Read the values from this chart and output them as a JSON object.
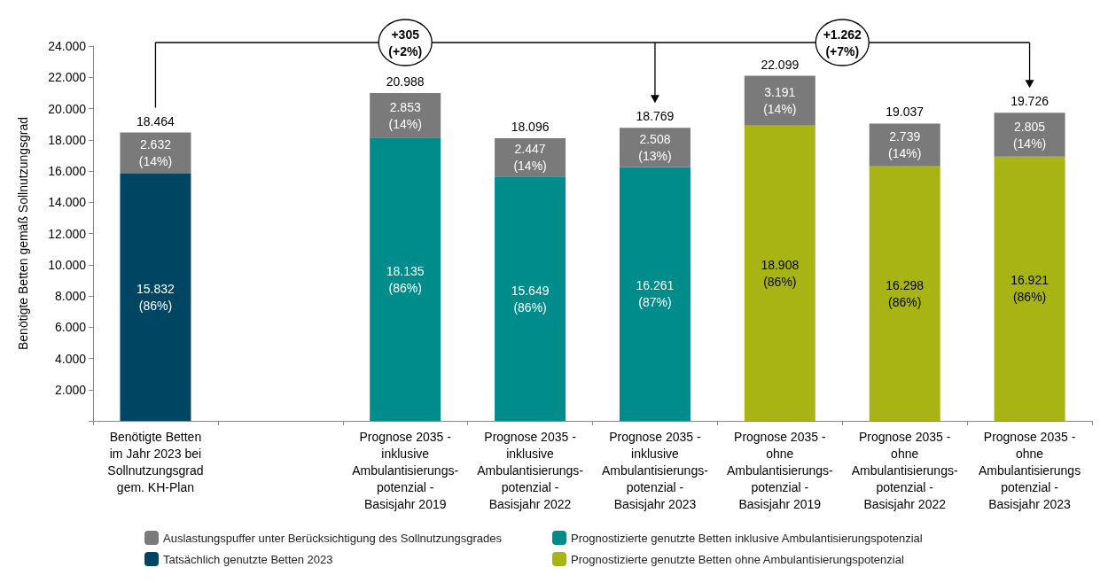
{
  "chart_data": {
    "type": "bar",
    "stacked": true,
    "ylabel": "Benötigte Betten gemäß Sollnutzungsgrad",
    "categories": [
      "Benötigte Betten\nim Jahr 2023 bei\nSollnutzungsgrad\ngem. KH-Plan",
      null,
      "Prognose 2035 -\ninklusive\nAmbulantisierungs-\npotenzial -\nBasisjahr 2019",
      "Prognose 2035 -\ninklusive\nAmbulantisierungs-\npotenzial -\nBasisjahr 2022",
      "Prognose 2035 -\ninklusive\nAmbulantisierungs-\npotenzial -\nBasisjahr 2023",
      "Prognose 2035 -\nohne\nAmbulantisierungs-\npotenzial -\nBasisjahr 2019",
      "Prognose 2035 -\nohne\nAmbulantisierungs-\npotenzial -\nBasisjahr 2022",
      "Prognose 2035 -\nohne\nAmbulantisierungs\npotenzial -\nBasisjahr 2023"
    ],
    "series": [
      {
        "name": "Tatsächlich genutzte Betten 2023",
        "color": "#004662",
        "values": [
          15832,
          null,
          null,
          null,
          null,
          null,
          null,
          null
        ],
        "value_labels": [
          "15.832\n(86%)",
          null,
          null,
          null,
          null,
          null,
          null,
          null
        ]
      },
      {
        "name": "Prognostizierte genutzte Betten inklusive Ambulantisierungspotenzial",
        "color": "#008c8a",
        "values": [
          null,
          null,
          18135,
          15649,
          16261,
          null,
          null,
          null
        ],
        "value_labels": [
          null,
          null,
          "18.135\n(86%)",
          "15.649\n(86%)",
          "16.261\n(87%)",
          null,
          null,
          null
        ]
      },
      {
        "name": "Prognostizierte genutzte Betten ohne Ambulantisierungspotenzial",
        "color": "#a8b414",
        "values": [
          null,
          null,
          null,
          null,
          null,
          18908,
          16298,
          16921
        ],
        "value_labels": [
          null,
          null,
          null,
          null,
          null,
          "18.908\n(86%)",
          "16.298\n(86%)",
          "16.921\n(86%)"
        ]
      },
      {
        "name": "Auslastungspuffer unter Berücksichtigung des Sollnutzungsgrades",
        "color": "#7a7a7a",
        "values": [
          2632,
          null,
          2853,
          2447,
          2508,
          3191,
          2739,
          2805
        ],
        "value_labels": [
          "2.632\n(14%)",
          null,
          "2.853\n(14%)",
          "2.447\n(14%)",
          "2.508\n(13%)",
          "3.191\n(14%)",
          "2.739\n(14%)",
          "2.805\n(14%)"
        ]
      }
    ],
    "totals": [
      "18.464",
      null,
      "20.988",
      "18.096",
      "18.769",
      "22.099",
      "19.037",
      "19.726"
    ],
    "ylim": [
      0,
      24000
    ],
    "yticks": [
      {
        "value": 0,
        "label": null
      },
      {
        "value": 2000,
        "label": "2.000"
      },
      {
        "value": 4000,
        "label": "4.000"
      },
      {
        "value": 6000,
        "label": "6.000"
      },
      {
        "value": 8000,
        "label": "8.000"
      },
      {
        "value": 10000,
        "label": "10.000"
      },
      {
        "value": 12000,
        "label": "12.000"
      },
      {
        "value": 14000,
        "label": "14.000"
      },
      {
        "value": 16000,
        "label": "16.000"
      },
      {
        "value": 18000,
        "label": "18.000"
      },
      {
        "value": 20000,
        "label": "20.000"
      },
      {
        "value": 22000,
        "label": "22.000"
      },
      {
        "value": 24000,
        "label": "24.000"
      }
    ],
    "annotations": [
      "+305\n(+2%)",
      "+1.262\n(+7%)"
    ],
    "grid": false,
    "legend": "bottom"
  }
}
